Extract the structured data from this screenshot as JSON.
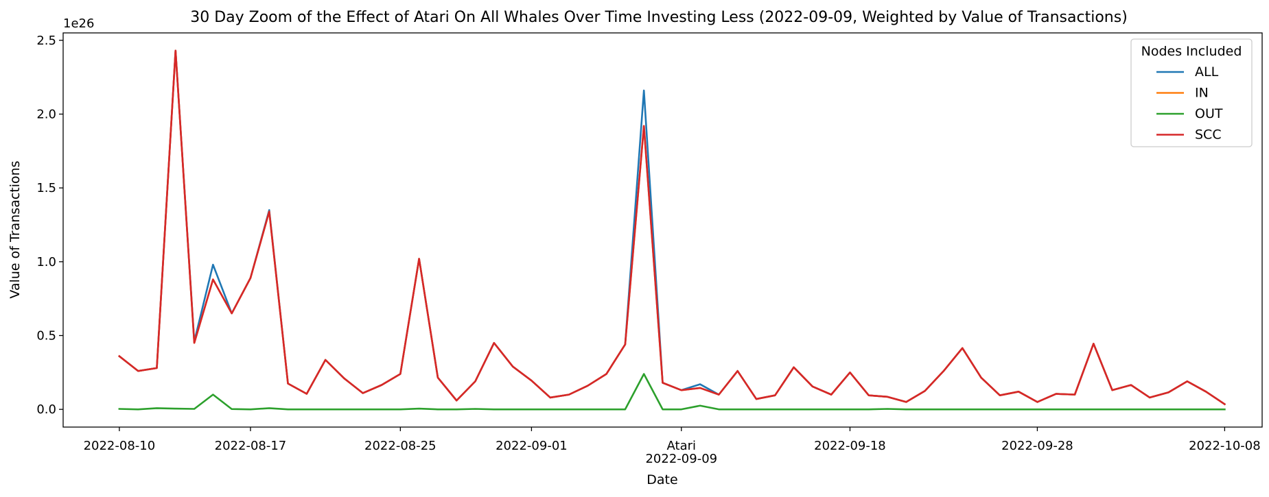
{
  "chart_data": {
    "type": "line",
    "title": "30 Day Zoom of the Effect of Atari On All Whales Over Time Investing Less (2022-09-09, Weighted by Value of Transactions)",
    "xlabel": "Date",
    "ylabel": "Value of Transactions",
    "y_offset_text": "1e26",
    "y_multiplier": 1e+26,
    "ylim": [
      -0.12,
      2.55
    ],
    "xlim": [
      "2022-08-07",
      "2022-10-10"
    ],
    "y_ticks": [
      0.0,
      0.5,
      1.0,
      1.5,
      2.0,
      2.5
    ],
    "y_tick_labels": [
      "0.0",
      "0.5",
      "1.0",
      "1.5",
      "2.0",
      "2.5"
    ],
    "x_ticks": [
      "2022-08-10",
      "2022-08-17",
      "2022-08-25",
      "2022-09-01",
      "2022-09-09",
      "2022-09-18",
      "2022-09-28",
      "2022-10-08"
    ],
    "x_tick_labels": [
      "2022-08-10",
      "2022-08-17",
      "2022-08-25",
      "2022-09-01",
      "2022-09-09",
      "2022-09-18",
      "2022-09-28",
      "2022-10-08"
    ],
    "annotations": [
      {
        "x": "2022-09-09",
        "text": "Atari",
        "position": "above-tick"
      }
    ],
    "grid": false,
    "legend": {
      "title": "Nodes Included",
      "position": "top-right"
    },
    "x": [
      "2022-08-10",
      "2022-08-11",
      "2022-08-12",
      "2022-08-13",
      "2022-08-14",
      "2022-08-15",
      "2022-08-16",
      "2022-08-17",
      "2022-08-18",
      "2022-08-19",
      "2022-08-20",
      "2022-08-21",
      "2022-08-22",
      "2022-08-23",
      "2022-08-24",
      "2022-08-25",
      "2022-08-26",
      "2022-08-27",
      "2022-08-28",
      "2022-08-29",
      "2022-08-30",
      "2022-08-31",
      "2022-09-01",
      "2022-09-02",
      "2022-09-03",
      "2022-09-04",
      "2022-09-05",
      "2022-09-06",
      "2022-09-07",
      "2022-09-08",
      "2022-09-09",
      "2022-09-10",
      "2022-09-11",
      "2022-09-12",
      "2022-09-13",
      "2022-09-14",
      "2022-09-15",
      "2022-09-16",
      "2022-09-17",
      "2022-09-18",
      "2022-09-19",
      "2022-09-20",
      "2022-09-21",
      "2022-09-22",
      "2022-09-23",
      "2022-09-24",
      "2022-09-25",
      "2022-09-26",
      "2022-09-27",
      "2022-09-28",
      "2022-09-29",
      "2022-09-30",
      "2022-10-01",
      "2022-10-02",
      "2022-10-03",
      "2022-10-04",
      "2022-10-05",
      "2022-10-06",
      "2022-10-07",
      "2022-10-08"
    ],
    "series": [
      {
        "name": "ALL",
        "color": "#1f77b4",
        "values": [
          0.36,
          0.26,
          0.28,
          2.43,
          0.46,
          0.98,
          0.65,
          0.89,
          1.35,
          0.175,
          0.105,
          0.335,
          0.21,
          0.11,
          0.165,
          0.24,
          1.02,
          0.215,
          0.06,
          0.19,
          0.45,
          0.29,
          0.195,
          0.08,
          0.1,
          0.16,
          0.24,
          0.44,
          2.16,
          0.18,
          0.13,
          0.17,
          0.1,
          0.26,
          0.07,
          0.095,
          0.285,
          0.155,
          0.1,
          0.25,
          0.095,
          0.085,
          0.05,
          0.125,
          0.26,
          0.415,
          0.215,
          0.095,
          0.12,
          0.05,
          0.105,
          0.1,
          0.445,
          0.13,
          0.165,
          0.08,
          0.115,
          0.19,
          0.12,
          0.035
        ]
      },
      {
        "name": "IN",
        "color": "#ff7f0e",
        "values": [
          0.36,
          0.26,
          0.28,
          2.43,
          0.45,
          0.88,
          0.65,
          0.89,
          1.34,
          0.175,
          0.105,
          0.335,
          0.21,
          0.11,
          0.165,
          0.24,
          1.02,
          0.215,
          0.06,
          0.19,
          0.45,
          0.29,
          0.195,
          0.08,
          0.1,
          0.16,
          0.24,
          0.44,
          1.92,
          0.18,
          0.13,
          0.145,
          0.1,
          0.26,
          0.07,
          0.095,
          0.285,
          0.155,
          0.1,
          0.25,
          0.095,
          0.085,
          0.05,
          0.125,
          0.26,
          0.415,
          0.215,
          0.095,
          0.12,
          0.05,
          0.105,
          0.1,
          0.445,
          0.13,
          0.165,
          0.08,
          0.115,
          0.19,
          0.12,
          0.035
        ]
      },
      {
        "name": "OUT",
        "color": "#2ca02c",
        "values": [
          0.003,
          0.0,
          0.008,
          0.005,
          0.003,
          0.1,
          0.002,
          0.0,
          0.008,
          0.0,
          0.0,
          0.0,
          0.0,
          0.0,
          0.0,
          0.0,
          0.005,
          0.0,
          0.0,
          0.003,
          0.0,
          0.0,
          0.0,
          0.0,
          0.0,
          0.0,
          0.0,
          0.0,
          0.24,
          0.0,
          0.0,
          0.025,
          0.0,
          0.0,
          0.0,
          0.0,
          0.0,
          0.0,
          0.0,
          0.0,
          0.0,
          0.003,
          0.0,
          0.0,
          0.0,
          0.0,
          0.0,
          0.0,
          0.0,
          0.0,
          0.0,
          0.0,
          0.0,
          0.0,
          0.0,
          0.0,
          0.0,
          0.0,
          0.0,
          0.0
        ]
      },
      {
        "name": "SCC",
        "color": "#d62728",
        "values": [
          0.36,
          0.26,
          0.28,
          2.43,
          0.45,
          0.88,
          0.65,
          0.89,
          1.34,
          0.175,
          0.105,
          0.335,
          0.21,
          0.11,
          0.165,
          0.24,
          1.02,
          0.215,
          0.06,
          0.19,
          0.45,
          0.29,
          0.195,
          0.08,
          0.1,
          0.16,
          0.24,
          0.44,
          1.92,
          0.18,
          0.13,
          0.145,
          0.1,
          0.26,
          0.07,
          0.095,
          0.285,
          0.155,
          0.1,
          0.25,
          0.095,
          0.085,
          0.05,
          0.125,
          0.26,
          0.415,
          0.215,
          0.095,
          0.12,
          0.05,
          0.105,
          0.1,
          0.445,
          0.13,
          0.165,
          0.08,
          0.115,
          0.19,
          0.12,
          0.035
        ]
      }
    ]
  }
}
